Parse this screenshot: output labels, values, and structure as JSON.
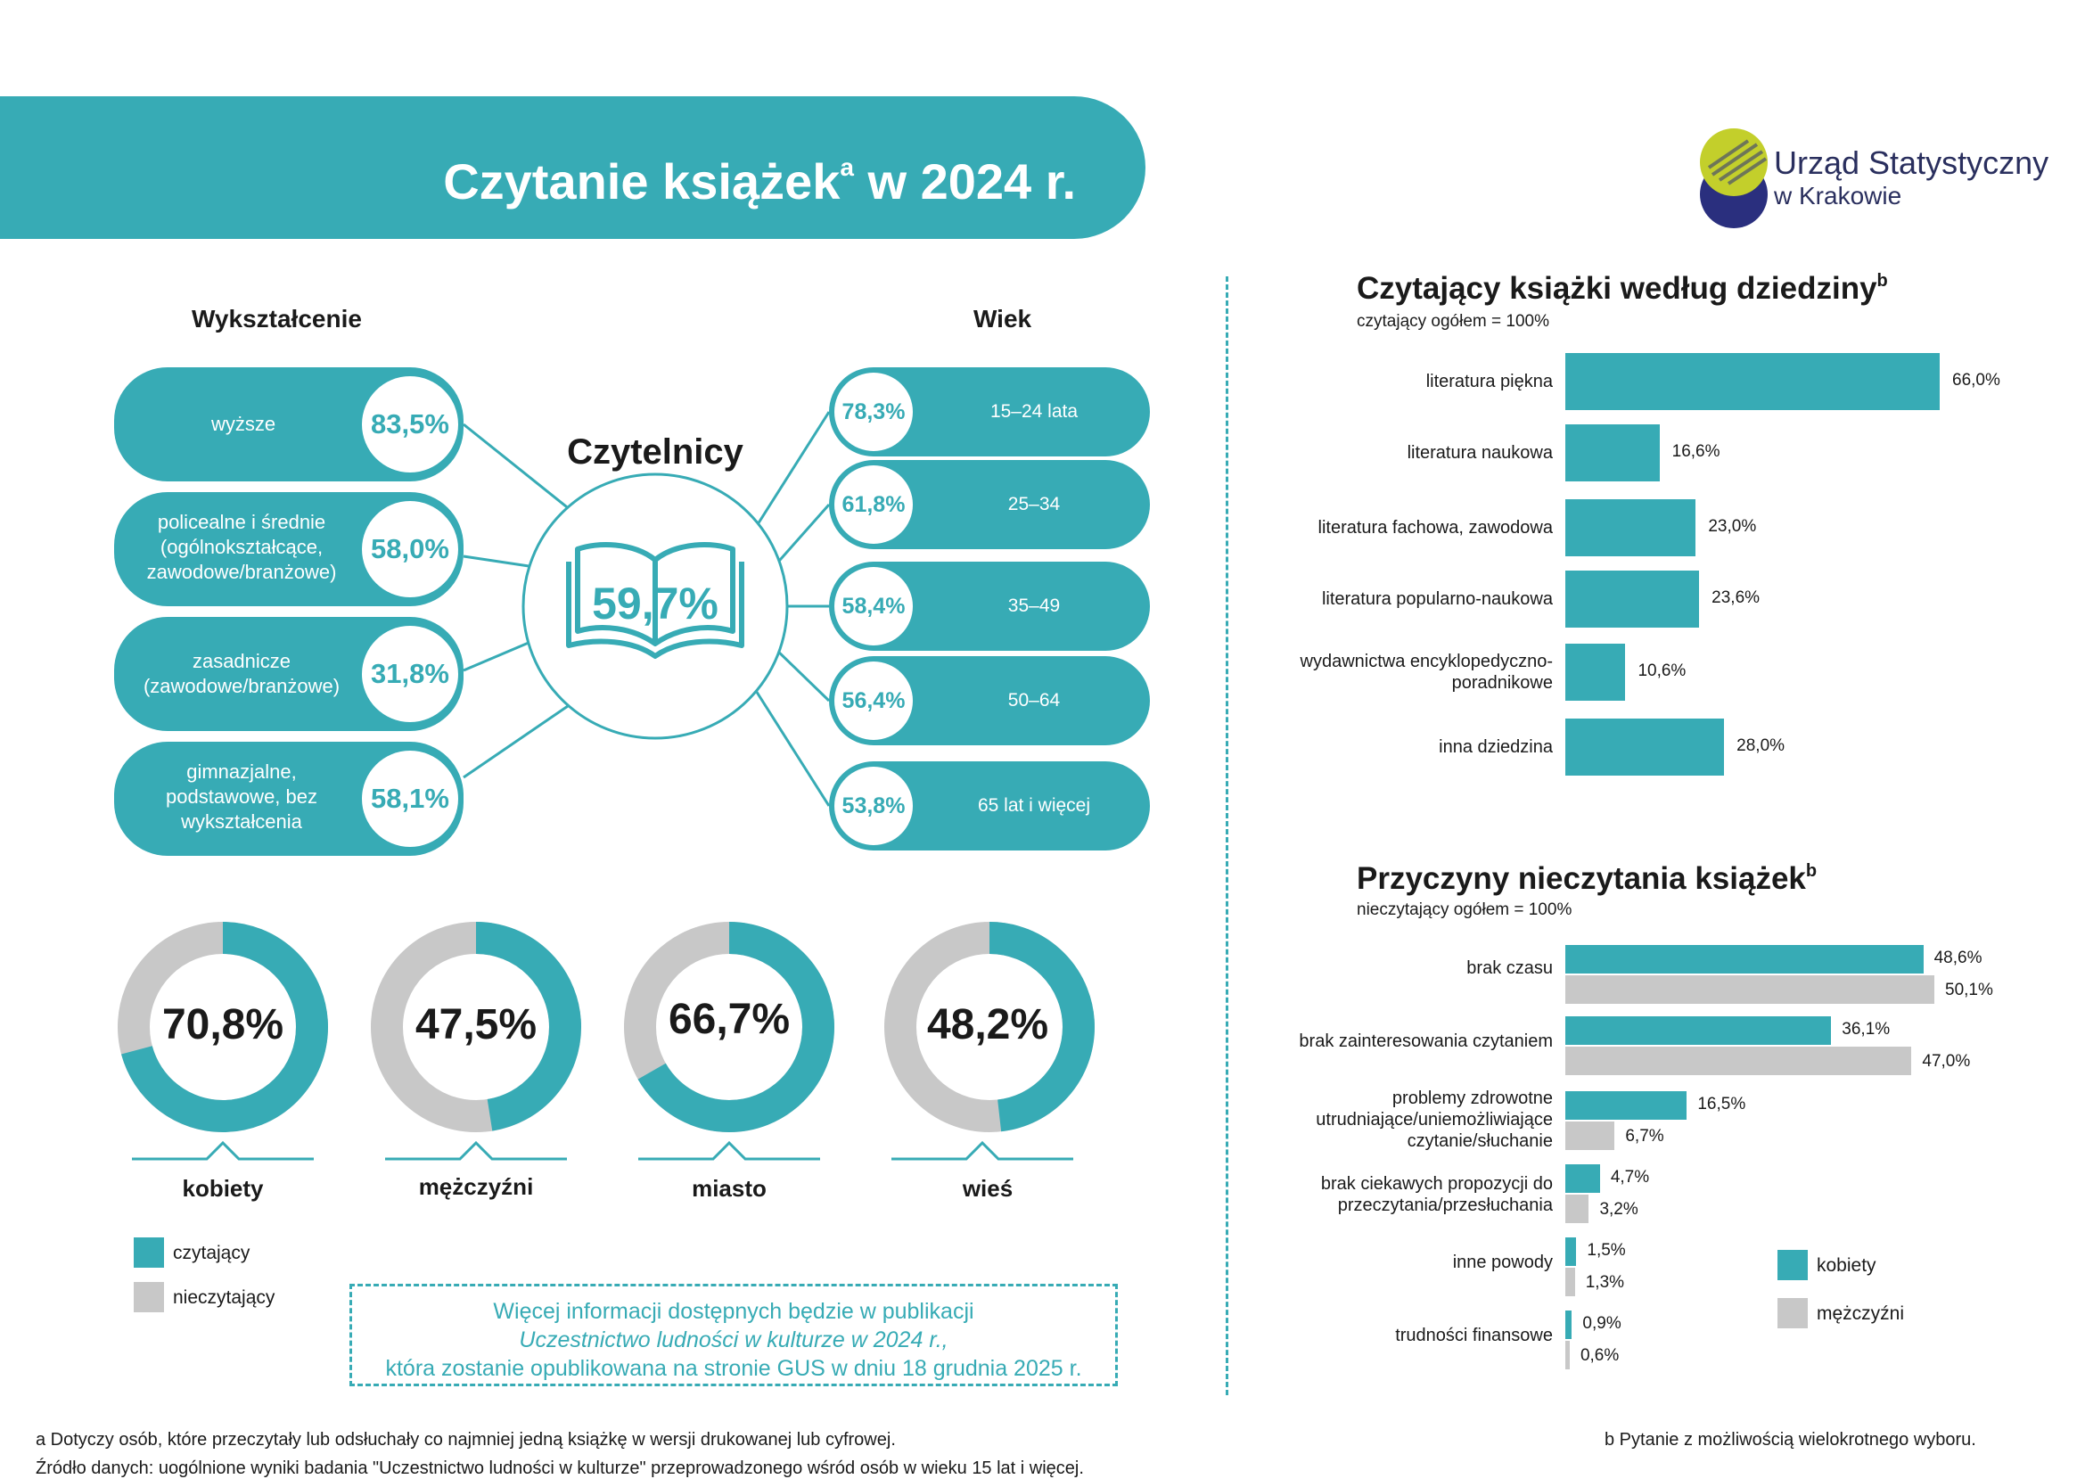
{
  "header": {
    "title": "Czytanie książek",
    "title_sup": "a",
    "title_year": " w 2024 r."
  },
  "logo": {
    "line1": "Urząd Statystyczny",
    "line2": "w Krakowie",
    "colors": [
      "#c3cf2b",
      "#2a2f7e"
    ]
  },
  "colors": {
    "teal": "#37abb5",
    "grey": "#c8c8c8",
    "dark": "#1a1a1a",
    "line": "#37abb5"
  },
  "readers": {
    "title": "Czytelnicy",
    "total": "59,7%",
    "icon": "open-book-icon",
    "education": {
      "heading": "Wykształcenie",
      "items": [
        {
          "label": "wyższe",
          "value": "83,5%"
        },
        {
          "label": "policealne i średnie (ogólnokształcące, zawodowe/branżowe)",
          "value": "58,0%"
        },
        {
          "label": "zasadnicze (zawodowe/branżowe)",
          "value": "31,8%"
        },
        {
          "label": "gimnazjalne, podstawowe, bez wykształcenia",
          "value": "58,1%"
        }
      ]
    },
    "age": {
      "heading": "Wiek",
      "items": [
        {
          "label": "15–24 lata",
          "value": "78,3%"
        },
        {
          "label": "25–34",
          "value": "61,8%"
        },
        {
          "label": "35–49",
          "value": "58,4%"
        },
        {
          "label": "50–64",
          "value": "56,4%"
        },
        {
          "label": "65 lat i więcej",
          "value": "53,8%"
        }
      ]
    }
  },
  "donuts": [
    {
      "label": "kobiety",
      "value": "70,8%",
      "share": 0.708
    },
    {
      "label": "mężczyźni",
      "value": "47,5%",
      "share": 0.475
    },
    {
      "label": "miasto",
      "value": "66,7%",
      "share": 0.667
    },
    {
      "label": "wieś",
      "value": "48,2%",
      "share": 0.482
    }
  ],
  "donut_legend": {
    "reading": "czytający",
    "not_reading": "nieczytający"
  },
  "info_box": {
    "line1": "Więcej informacji dostępnych będzie w publikacji",
    "line2": "Uczestnictwo ludności w kulturze w 2024 r.,",
    "line3": "która zostanie opublikowana na stronie GUS w dniu 18 grudnia 2025 r."
  },
  "footnotes": {
    "a": "a Dotyczy osób, które przeczytały lub odsłuchały co najmniej jedną książkę w wersji drukowanej lub cyfrowej.",
    "source": "Źródło danych: uogólnione wyniki badania \"Uczestnictwo ludności w kulturze\" przeprowadzonego wśród osób w wieku 15 lat i więcej.",
    "b": "b Pytanie z możliwością wielokrotnego wyboru."
  },
  "chart_data": [
    {
      "type": "bar",
      "orientation": "horizontal",
      "title": "Czytający książki według dziedziny",
      "title_sup": "b",
      "subtitle": "czytający ogółem = 100%",
      "categories": [
        "literatura piękna",
        "literatura naukowa",
        "literatura fachowa, zawodowa",
        "literatura popularno-naukowa",
        "wydawnictwa encyklopedyczno-poradnikowe",
        "inna dziedzina"
      ],
      "values": [
        66.0,
        16.6,
        23.0,
        23.6,
        10.6,
        28.0
      ],
      "labels": [
        "66,0%",
        "16,6%",
        "23,0%",
        "23,6%",
        "10,6%",
        "28,0%"
      ],
      "xlim": [
        0,
        66.0
      ],
      "grid": false
    },
    {
      "type": "bar",
      "orientation": "horizontal",
      "title": "Przyczyny nieczytania książek",
      "title_sup": "b",
      "subtitle": "nieczytający ogółem = 100%",
      "categories": [
        "brak czasu",
        "brak zainteresowania czytaniem",
        "problemy zdrowotne utrudniające/uniemożliwiające czytanie/słuchanie",
        "brak ciekawych propozycji do przeczytania/przesłuchania",
        "inne powody",
        "trudności finansowe"
      ],
      "series": [
        {
          "name": "kobiety",
          "values": [
            48.6,
            36.1,
            16.5,
            4.7,
            1.5,
            0.9
          ],
          "labels": [
            "48,6%",
            "36,1%",
            "16,5%",
            "4,7%",
            "1,5%",
            "0,9%"
          ]
        },
        {
          "name": "mężczyźni",
          "values": [
            50.1,
            47.0,
            6.7,
            3.2,
            1.3,
            0.6
          ],
          "labels": [
            "50,1%",
            "47,0%",
            "6,7%",
            "3,2%",
            "1,3%",
            "0,6%"
          ]
        }
      ],
      "xlim": [
        0,
        50.1
      ],
      "grid": false,
      "legend": "right"
    }
  ]
}
